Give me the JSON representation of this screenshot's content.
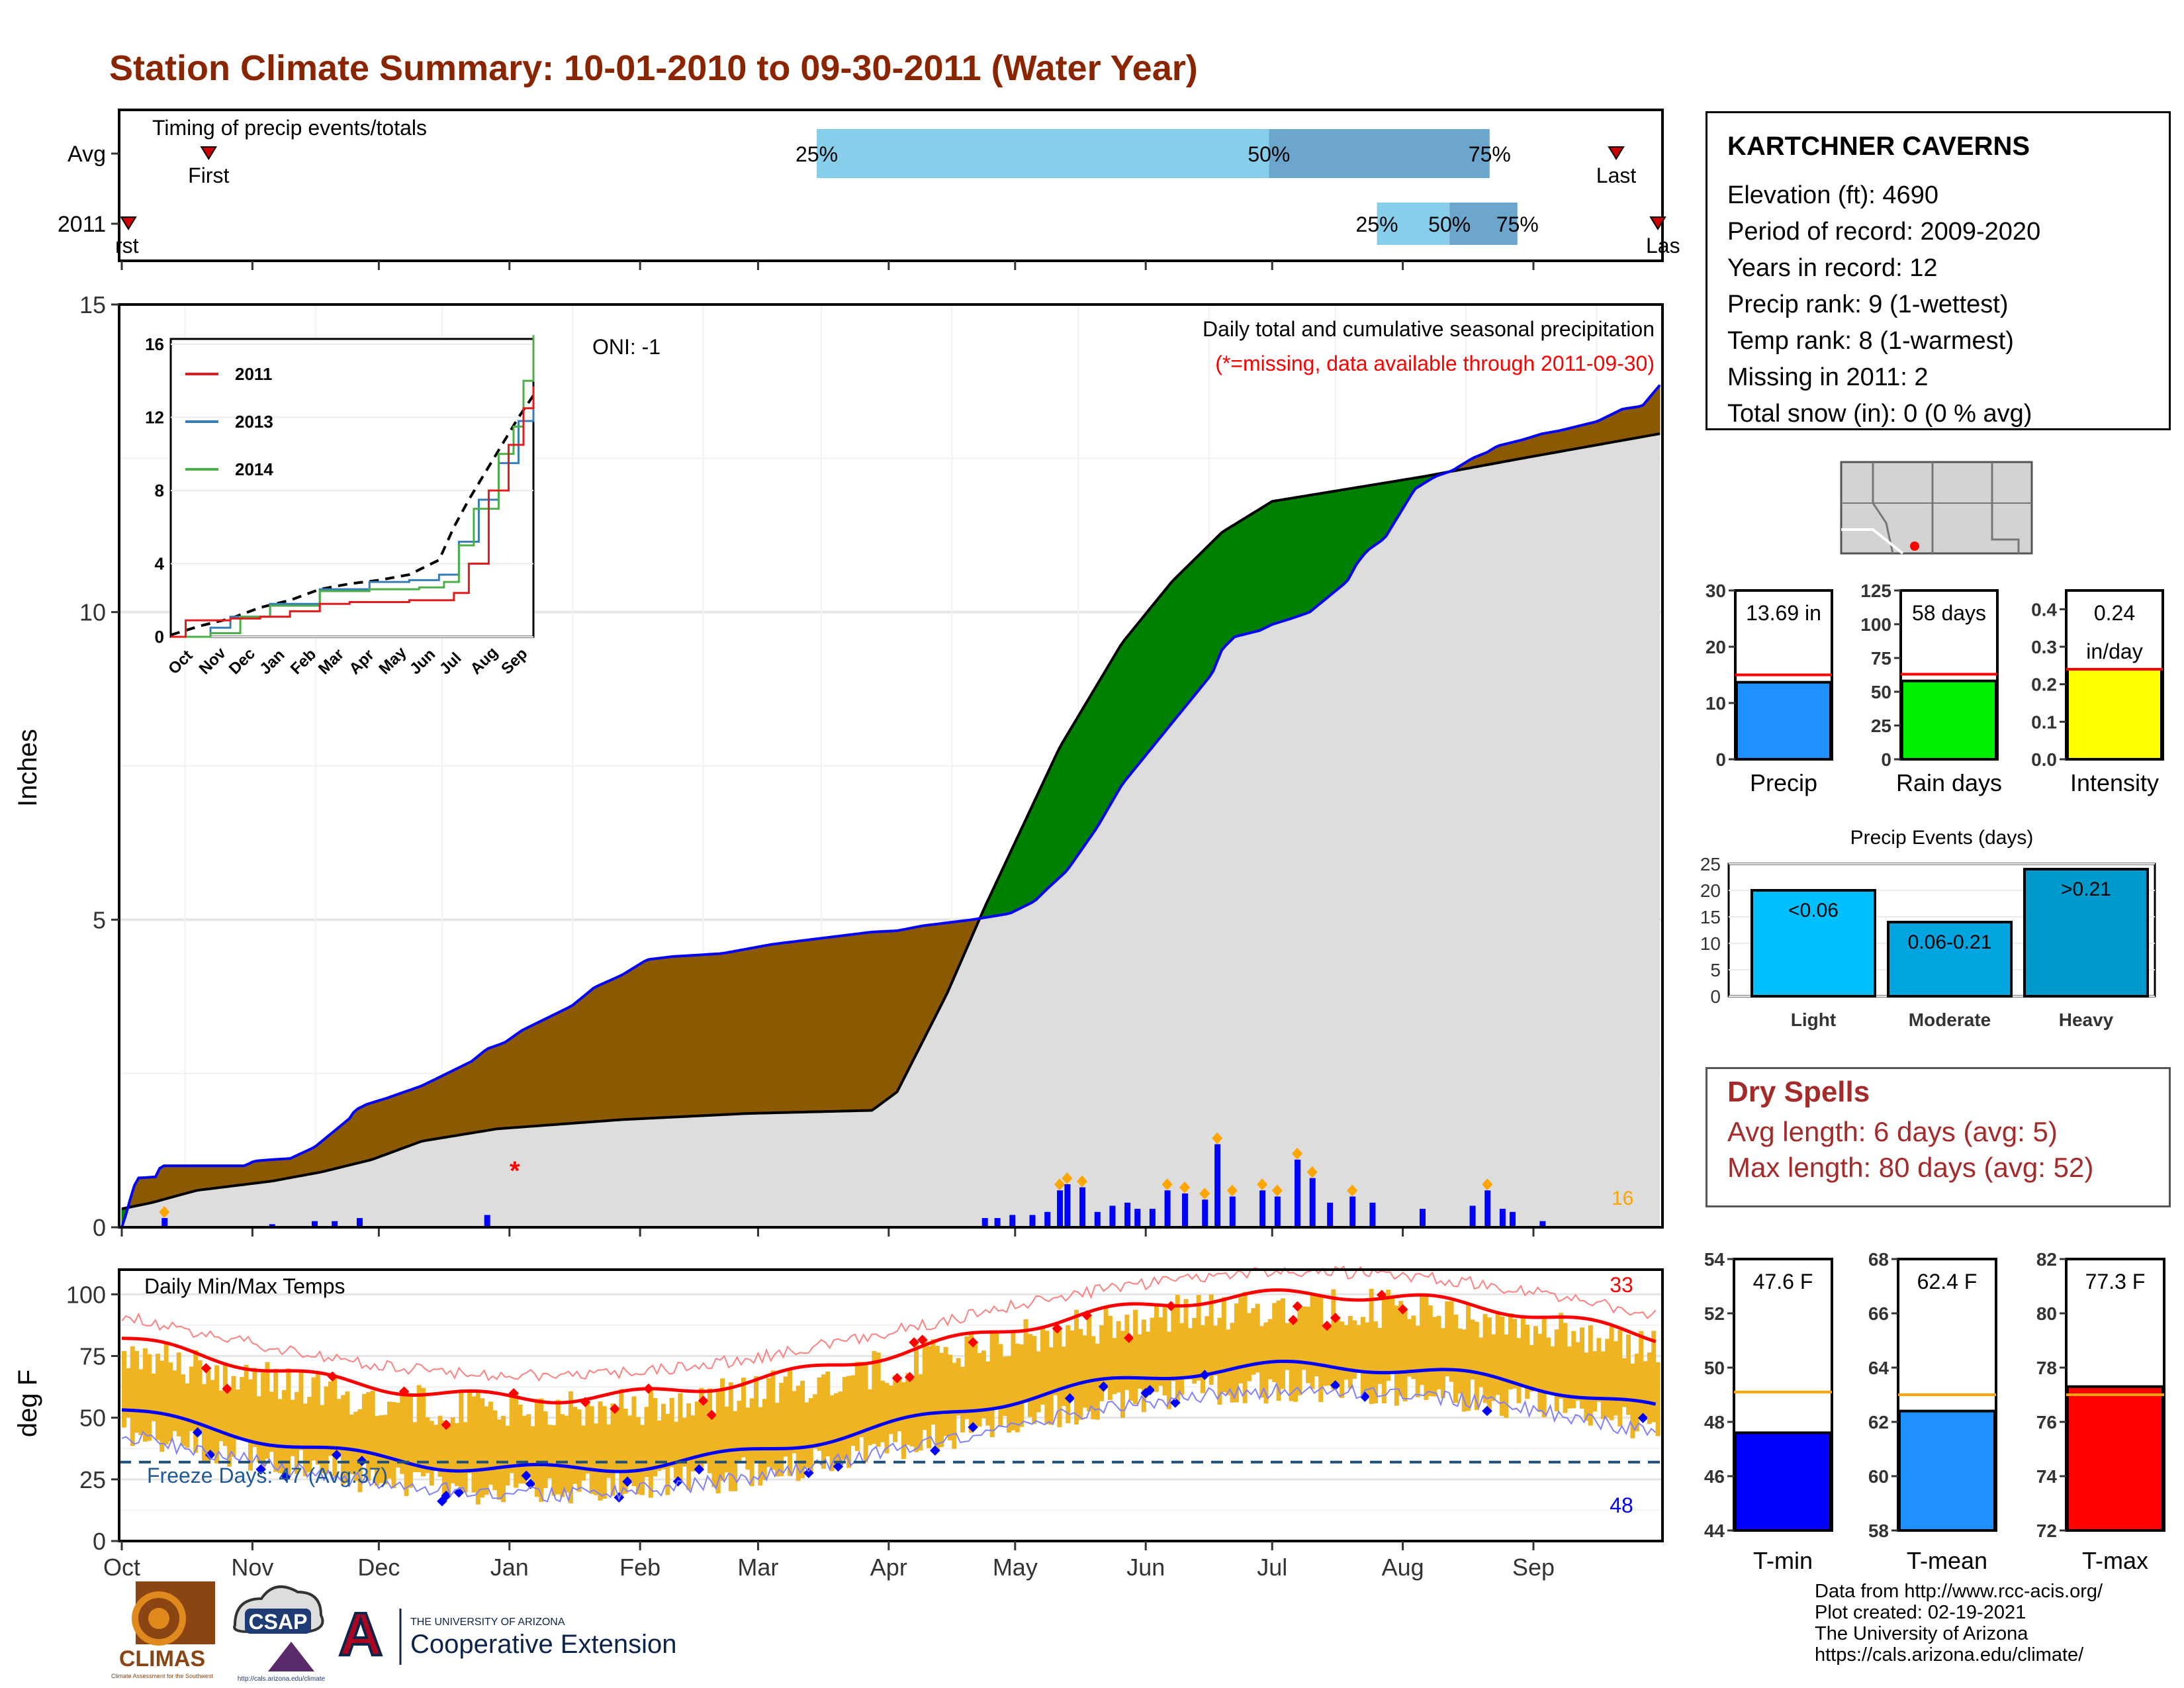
{
  "header": {
    "title": "Station Climate Summary: 10-01-2010 to 09-30-2011 (Water Year)"
  },
  "station": {
    "name": "KARTCHNER CAVERNS",
    "lines": [
      "Elevation (ft): 4690",
      "Period of record: 2009-2020",
      "Years in record: 12",
      "Precip rank: 9 (1-wettest)",
      "Temp rank: 8 (1-warmest)",
      "Missing in 2011: 2",
      "Total snow (in): 0 (0 % avg)"
    ]
  },
  "dry_spells": {
    "title": "Dry Spells",
    "avg_line": "Avg length: 6 days (avg: 5)",
    "max_line": "Max length: 80 days (avg: 52)"
  },
  "credits": [
    "Data from http://www.rcc-acis.org/",
    "Plot created: 02-19-2021",
    "The University of Arizona",
    "https://cals.arizona.edu/climate/"
  ],
  "logos": {
    "climas": "CLIMAS",
    "climas_sub": "Climate Assessment for the Southwest",
    "csap": "CSAP",
    "csap_url": "http://cals.arizona.edu/climate",
    "ua_top": "THE UNIVERSITY OF ARIZONA",
    "ua_main": "Cooperative Extension",
    "ua_letter": "A"
  },
  "colors": {
    "title": "#8B2500",
    "wet": "#008000",
    "dry": "#8B5A00",
    "current": "#0000FF",
    "avg_area": "#DDDDDD",
    "orange": "#FFA500",
    "temp_bar": "#EEB422",
    "tmax": "#FF0000",
    "tmin": "#0000FF"
  },
  "chart_data": [
    {
      "type": "timeline",
      "name_label": "Timing of precip events/totals",
      "rows": [
        {
          "label": "Avg",
          "first": "First",
          "last": "Last",
          "p25": "25%",
          "p50": "50%",
          "p75": "75%",
          "first_frac": 0.058,
          "p25_frac": 0.452,
          "p50_frac": 0.745,
          "p75_frac": 0.888,
          "last_frac": 0.97
        },
        {
          "label": "2011",
          "first": "First",
          "last": "Last",
          "p25": "25%",
          "p50": "50%",
          "p75": "75%",
          "first_frac": 0.0,
          "p25_frac": 0.815,
          "p50_frac": 0.862,
          "p75_frac": 0.906,
          "last_frac": 0.997
        }
      ]
    },
    {
      "type": "area",
      "title": "Daily total and cumulative seasonal precipitation",
      "subtitle": "(*=missing, data available through 2011-09-30)",
      "annotation": "ONI: -1",
      "ylabel": "Inches",
      "ylim": [
        0,
        15
      ],
      "yticks": [
        0,
        5,
        10,
        15
      ],
      "months": [
        "Oct",
        "Nov",
        "Dec",
        "Jan",
        "Feb",
        "Mar",
        "Apr",
        "May",
        "Jun",
        "Jul",
        "Aug",
        "Sep"
      ],
      "big_count": "16",
      "missing_marker": "*",
      "cumulative_2011": [
        [
          0,
          0
        ],
        [
          2,
          0.25
        ],
        [
          4,
          0.55
        ],
        [
          6,
          0.8
        ],
        [
          14,
          0.82
        ],
        [
          15,
          0.95
        ],
        [
          16,
          1.0
        ],
        [
          50,
          1.0
        ],
        [
          51,
          1.05
        ],
        [
          54,
          1.08
        ],
        [
          60,
          1.1
        ],
        [
          68,
          1.12
        ],
        [
          69,
          1.15
        ],
        [
          77,
          1.3
        ],
        [
          86,
          1.6
        ],
        [
          92,
          1.8
        ],
        [
          93,
          1.9
        ],
        [
          98,
          2.0
        ],
        [
          106,
          2.1
        ],
        [
          120,
          2.3
        ],
        [
          130,
          2.5
        ],
        [
          140,
          2.7
        ],
        [
          146,
          2.9
        ],
        [
          153,
          3.0
        ],
        [
          160,
          3.2
        ],
        [
          170,
          3.4
        ],
        [
          180,
          3.6
        ],
        [
          189,
          3.9
        ],
        [
          200,
          4.1
        ],
        [
          210,
          4.35
        ],
        [
          220,
          4.4
        ],
        [
          240,
          4.45
        ],
        [
          260,
          4.6
        ],
        [
          280,
          4.7
        ],
        [
          290,
          4.75
        ],
        [
          300,
          4.8
        ],
        [
          310,
          4.82
        ],
        [
          320,
          4.9
        ],
        [
          330,
          4.95
        ],
        [
          340,
          5.0
        ],
        [
          355,
          5.1
        ],
        [
          360,
          5.2
        ],
        [
          365,
          5.3
        ],
        [
          370,
          5.5
        ],
        [
          378,
          5.8
        ],
        [
          390,
          6.5
        ],
        [
          400,
          7.2
        ],
        [
          412,
          7.8
        ],
        [
          420,
          8.2
        ],
        [
          428,
          8.6
        ],
        [
          436,
          9.0
        ],
        [
          440,
          9.4
        ],
        [
          445,
          9.6
        ],
        [
          455,
          9.7
        ],
        [
          460,
          9.8
        ],
        [
          468,
          9.9
        ],
        [
          475,
          10.0
        ],
        [
          490,
          10.5
        ],
        [
          494,
          10.8
        ],
        [
          498,
          11.0
        ],
        [
          505,
          11.2
        ],
        [
          517,
          12.0
        ],
        [
          525,
          12.2
        ],
        [
          532,
          12.3
        ],
        [
          540,
          12.5
        ],
        [
          546,
          12.6
        ],
        [
          550,
          12.7
        ],
        [
          560,
          12.8
        ],
        [
          568,
          12.9
        ],
        [
          575,
          12.95
        ],
        [
          580,
          13.0
        ],
        [
          590,
          13.1
        ],
        [
          600,
          13.3
        ],
        [
          608,
          13.35
        ],
        [
          615,
          13.69
        ]
      ],
      "daily_bars": [
        [
          17,
          0.15
        ],
        [
          60,
          0.05
        ],
        [
          77,
          0.1
        ],
        [
          85,
          0.1
        ],
        [
          95,
          0.15
        ],
        [
          146,
          0.2
        ],
        [
          345,
          0.15
        ],
        [
          350,
          0.15
        ],
        [
          356,
          0.2
        ],
        [
          364,
          0.2
        ],
        [
          370,
          0.25
        ],
        [
          375,
          0.6
        ],
        [
          378,
          0.7
        ],
        [
          384,
          0.65
        ],
        [
          390,
          0.25
        ],
        [
          396,
          0.35
        ],
        [
          402,
          0.4
        ],
        [
          406,
          0.3
        ],
        [
          412,
          0.3
        ],
        [
          418,
          0.6
        ],
        [
          425,
          0.55
        ],
        [
          433,
          0.45
        ],
        [
          438,
          1.35
        ],
        [
          444,
          0.5
        ],
        [
          456,
          0.6
        ],
        [
          462,
          0.5
        ],
        [
          470,
          1.1
        ],
        [
          476,
          0.8
        ],
        [
          483,
          0.4
        ],
        [
          492,
          0.5
        ],
        [
          500,
          0.4
        ],
        [
          520,
          0.3
        ],
        [
          540,
          0.35
        ],
        [
          546,
          0.6
        ],
        [
          552,
          0.3
        ],
        [
          556,
          0.25
        ],
        [
          568,
          0.1
        ]
      ],
      "note": "cumulative_2011 values are [day_index_relative_to_display, inches]; day index 0..615 spans Oct 1 to Sep 30"
    },
    {
      "type": "line",
      "name": "inset",
      "series": [
        {
          "name": "2011"
        },
        {
          "name": "2013"
        },
        {
          "name": "2014"
        }
      ],
      "ylim": [
        0,
        16
      ],
      "yticks": [
        0,
        4,
        8,
        12,
        16
      ],
      "months": [
        "Oct",
        "Nov",
        "Dec",
        "Jan",
        "Feb",
        "Mar",
        "Apr",
        "May",
        "Jun",
        "Jul",
        "Aug",
        "Sep"
      ]
    },
    {
      "type": "bar",
      "name": "temps",
      "title": "Daily Min/Max Temps",
      "ylabel": "deg F",
      "ylim": [
        0,
        110
      ],
      "yticks": [
        0,
        25,
        50,
        75,
        100
      ],
      "months": [
        "Oct",
        "Nov",
        "Dec",
        "Jan",
        "Feb",
        "Mar",
        "Apr",
        "May",
        "Jun",
        "Jul",
        "Aug",
        "Sep"
      ],
      "freeze_label": "Freeze Days: 47 (Avg:37)",
      "freeze_line": 32,
      "hot_count": "33",
      "cold_count": "48"
    },
    {
      "type": "bar",
      "name": "precip_total",
      "title": "Precip",
      "value": 13.69,
      "avg": 15,
      "ylim": [
        0,
        30
      ],
      "yticks": [
        0,
        10,
        20,
        30
      ],
      "label": "13.69 in",
      "color": "#1E90FF"
    },
    {
      "type": "bar",
      "name": "rain_days",
      "title": "Rain days",
      "value": 58,
      "avg": 63,
      "ylim": [
        0,
        125
      ],
      "yticks": [
        0,
        25,
        50,
        75,
        100,
        125
      ],
      "label": "58 days",
      "color": "#00EE00"
    },
    {
      "type": "bar",
      "name": "intensity",
      "title": "Intensity",
      "value": 0.24,
      "avg": 0.24,
      "ylim": [
        0,
        0.45
      ],
      "yticks": [
        "0.0",
        "0.1",
        "0.2",
        "0.3",
        "0.4"
      ],
      "label": "0.24",
      "label2": "in/day",
      "color": "#FFFF00"
    },
    {
      "type": "bar",
      "name": "precip_events",
      "title": "Precip Events (days)",
      "categories": [
        "Light",
        "Moderate",
        "Heavy"
      ],
      "values": [
        20,
        14,
        24
      ],
      "labels": [
        "<0.06",
        "0.06-0.21",
        ">0.21"
      ],
      "ylim": [
        0,
        25
      ],
      "yticks": [
        0,
        5,
        10,
        15,
        20,
        25
      ]
    },
    {
      "type": "bar",
      "name": "tmin",
      "title": "T-min",
      "value": 47.6,
      "avg": 49.1,
      "ylim": [
        44,
        54
      ],
      "yticks": [
        44,
        46,
        48,
        50,
        52,
        54
      ],
      "label": "47.6 F",
      "color": "#0000FF"
    },
    {
      "type": "bar",
      "name": "tmean",
      "title": "T-mean",
      "value": 62.4,
      "avg": 63.0,
      "ylim": [
        58,
        68
      ],
      "yticks": [
        58,
        60,
        62,
        64,
        66,
        68
      ],
      "label": "62.4 F",
      "color": "#1E90FF"
    },
    {
      "type": "bar",
      "name": "tmax",
      "title": "T-max",
      "value": 77.3,
      "avg": 77.0,
      "ylim": [
        72,
        82
      ],
      "yticks": [
        72,
        74,
        76,
        78,
        80,
        82
      ],
      "label": "77.3 F",
      "color": "#FF0000"
    }
  ]
}
